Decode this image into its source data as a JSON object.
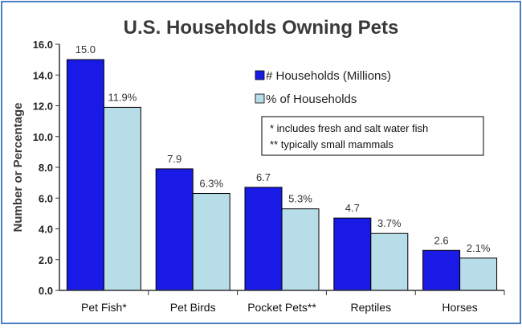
{
  "chart_data": {
    "type": "bar",
    "title": "U.S. Households Owning Pets",
    "xlabel": "",
    "ylabel": "Number or Percentage",
    "ylim": [
      0,
      16
    ],
    "yticks": [
      "0.0",
      "2.0",
      "4.0",
      "6.0",
      "8.0",
      "10.0",
      "12.0",
      "14.0",
      "16.0"
    ],
    "categories": [
      "Pet Fish*",
      "Pet Birds",
      "Pocket Pets**",
      "Reptiles",
      "Horses"
    ],
    "series": [
      {
        "name": "# Households (Millions)",
        "values": [
          15.0,
          7.9,
          6.7,
          4.7,
          2.6
        ],
        "labels": [
          "15.0",
          "7.9",
          "6.7",
          "4.7",
          "2.6"
        ],
        "color": "#1a1ae6"
      },
      {
        "name": "% of Households",
        "values": [
          11.9,
          6.3,
          5.3,
          3.7,
          2.1
        ],
        "labels": [
          "11.9%",
          "6.3%",
          "5.3%",
          "3.7%",
          "2.1%"
        ],
        "color": "#b7dde8"
      }
    ],
    "notes": [
      "* includes fresh and salt water fish",
      "** typically small mammals"
    ],
    "grid": false,
    "legend_position": "top-right"
  },
  "colors": {
    "frame_border": "#4a7fc1",
    "axis": "#333333",
    "bar_outline": "#000000"
  }
}
